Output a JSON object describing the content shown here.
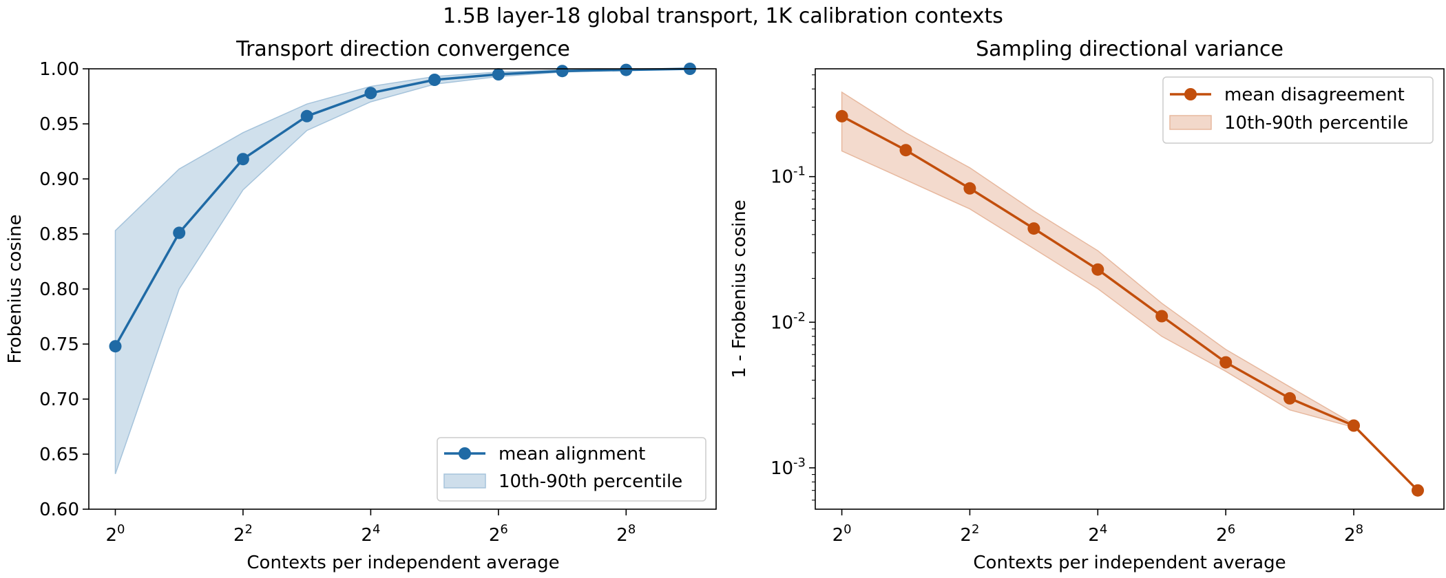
{
  "figure": {
    "suptitle": "1.5B layer-18 global transport, 1K calibration contexts"
  },
  "chart_data": [
    {
      "type": "line",
      "title": "Transport direction convergence",
      "xlabel": "Contexts per independent average",
      "ylabel": "Frobenius cosine",
      "xscale": "log2",
      "xlim": [
        0.75,
        680
      ],
      "ylim": [
        0.6,
        1.0
      ],
      "xtick_base": "2",
      "xtick_exponents": [
        "0",
        "2",
        "4",
        "6",
        "8"
      ],
      "ytick_labels": [
        "0.60",
        "0.65",
        "0.70",
        "0.75",
        "0.80",
        "0.85",
        "0.90",
        "0.95",
        "1.00"
      ],
      "x": [
        1,
        2,
        4,
        8,
        16,
        32,
        64,
        128,
        256,
        512
      ],
      "series": [
        {
          "name": "mean alignment",
          "color": "#1f6aa5",
          "values": [
            0.748,
            0.851,
            0.918,
            0.957,
            0.978,
            0.99,
            0.995,
            0.998,
            0.999,
            1.0
          ],
          "band_name": "10th-90th percentile",
          "band_low": [
            0.632,
            0.8,
            0.89,
            0.944,
            0.97,
            0.986,
            0.993,
            0.997,
            0.999,
            1.0
          ],
          "band_high": [
            0.853,
            0.909,
            0.942,
            0.968,
            0.984,
            0.993,
            0.997,
            0.999,
            1.0,
            1.0
          ]
        }
      ],
      "legend": {
        "location": "lower right",
        "entries": [
          "mean alignment",
          "10th-90th percentile"
        ]
      },
      "grid": false
    },
    {
      "type": "line",
      "title": "Sampling directional variance",
      "xlabel": "Contexts per independent average",
      "ylabel": "1 - Frobenius cosine",
      "xscale": "log2",
      "yscale": "log10",
      "xlim": [
        0.75,
        680
      ],
      "ylim": [
        0.00052,
        0.55
      ],
      "xtick_base": "2",
      "xtick_exponents": [
        "0",
        "2",
        "4",
        "6",
        "8"
      ],
      "ytick_base": "10",
      "ytick_exponents": [
        "-3",
        "-2",
        "-1"
      ],
      "x": [
        1,
        2,
        4,
        8,
        16,
        32,
        64,
        128,
        256,
        512
      ],
      "series": [
        {
          "name": "mean disagreement",
          "color": "#c24e0c",
          "values": [
            0.26,
            0.152,
            0.083,
            0.044,
            0.023,
            0.011,
            0.0053,
            0.003,
            0.00195,
            0.0007
          ],
          "band_name": "10th-90th percentile",
          "band_low": [
            0.15,
            0.095,
            0.06,
            0.032,
            0.017,
            0.008,
            0.0046,
            0.0025,
            0.0019
          ],
          "band_high": [
            0.38,
            0.2,
            0.115,
            0.058,
            0.031,
            0.0135,
            0.0065,
            0.0036,
            0.002
          ]
        }
      ],
      "legend": {
        "location": "upper right",
        "entries": [
          "mean disagreement",
          "10th-90th percentile"
        ]
      },
      "grid": false
    }
  ]
}
